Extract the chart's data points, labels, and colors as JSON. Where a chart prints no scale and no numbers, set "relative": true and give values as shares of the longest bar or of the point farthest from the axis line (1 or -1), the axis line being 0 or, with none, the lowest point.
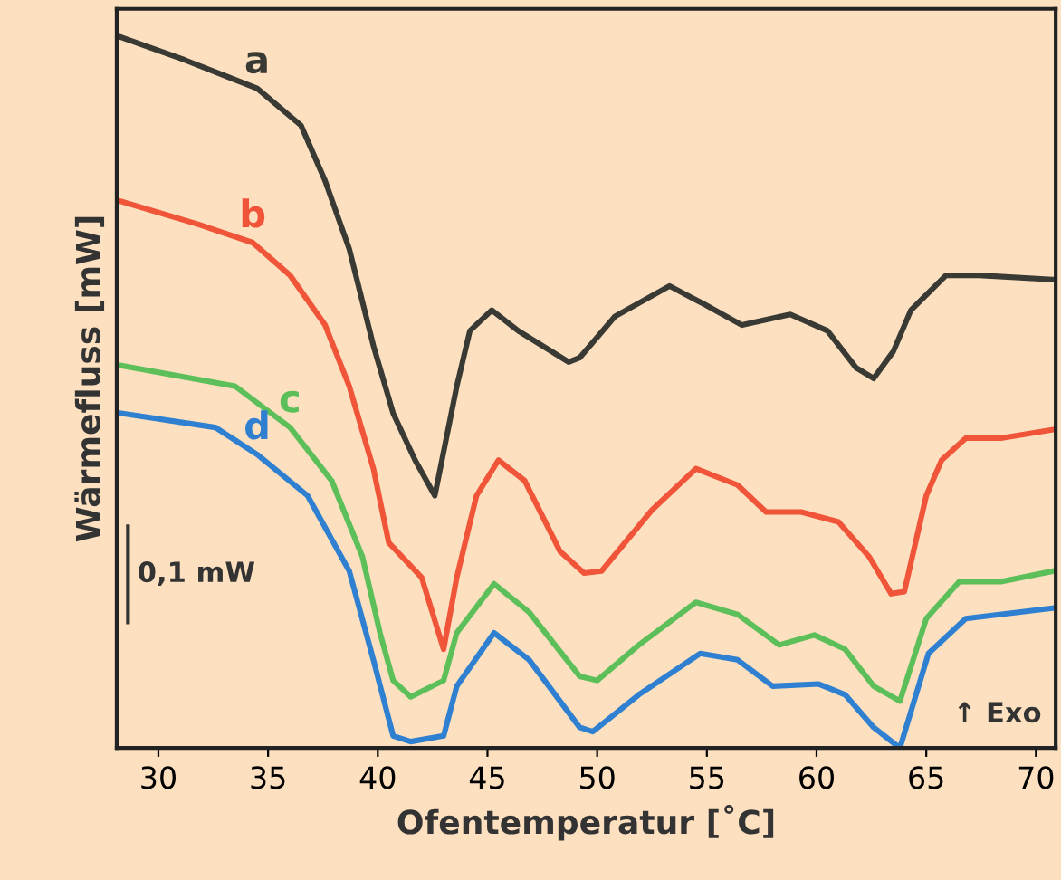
{
  "chart_data": {
    "type": "line",
    "xlabel": "Ofentemperatur [˚C]",
    "ylabel": "Wärmefluss [mW]",
    "relative": true,
    "xlim": [
      28.1,
      70.9
    ],
    "xticks": [
      30,
      35,
      40,
      45,
      50,
      55,
      60,
      65,
      70
    ],
    "tick_labels": "x",
    "grid": false,
    "legend": false,
    "marker": "none",
    "line_style": "solid",
    "annotations": [
      "0,1 mW",
      "↑ Exo"
    ],
    "series": [
      {
        "name": "a",
        "color": "#3a3a35",
        "x": [
          28.3,
          31.2,
          34.5,
          36.5,
          37.6,
          38.7,
          39.8,
          40.7,
          41.7,
          42.6,
          43.6,
          44.2,
          45.2,
          46.4,
          48.7,
          49.2,
          50.8,
          53.3,
          54.9,
          56.6,
          58.8,
          60.5,
          61.8,
          62.6,
          63.5,
          64.3,
          65.9,
          67.4,
          70.8
        ],
        "values": [
          1.0,
          0.968,
          0.928,
          0.876,
          0.798,
          0.702,
          0.566,
          0.471,
          0.405,
          0.355,
          0.509,
          0.587,
          0.616,
          0.587,
          0.543,
          0.549,
          0.607,
          0.65,
          0.624,
          0.595,
          0.61,
          0.587,
          0.535,
          0.52,
          0.558,
          0.616,
          0.665,
          0.665,
          0.659
        ]
      },
      {
        "name": "b",
        "color": "#f0553a",
        "x": [
          28.3,
          31.8,
          34.3,
          36.0,
          37.6,
          38.7,
          39.8,
          40.5,
          42.0,
          43.0,
          43.6,
          44.5,
          45.5,
          46.7,
          48.3,
          49.4,
          50.2,
          52.5,
          54.5,
          56.4,
          57.7,
          59.3,
          61.0,
          62.4,
          63.4,
          64.0,
          65.0,
          65.7,
          66.8,
          68.4,
          70.8
        ],
        "values": [
          0.769,
          0.737,
          0.711,
          0.665,
          0.595,
          0.509,
          0.393,
          0.289,
          0.24,
          0.139,
          0.24,
          0.355,
          0.405,
          0.376,
          0.277,
          0.246,
          0.249,
          0.335,
          0.393,
          0.37,
          0.332,
          0.332,
          0.318,
          0.269,
          0.217,
          0.22,
          0.355,
          0.405,
          0.436,
          0.436,
          0.448
        ]
      },
      {
        "name": "c",
        "color": "#5cbf5a",
        "x": [
          28.3,
          33.5,
          36.0,
          37.9,
          39.3,
          40.1,
          40.7,
          41.5,
          43.0,
          43.6,
          45.3,
          46.9,
          49.2,
          50.0,
          51.9,
          54.5,
          56.4,
          58.3,
          59.9,
          61.3,
          62.6,
          63.8,
          65.0,
          66.5,
          68.4,
          70.8
        ],
        "values": [
          0.538,
          0.509,
          0.451,
          0.376,
          0.269,
          0.162,
          0.095,
          0.072,
          0.095,
          0.162,
          0.231,
          0.191,
          0.101,
          0.095,
          0.145,
          0.205,
          0.188,
          0.145,
          0.159,
          0.139,
          0.087,
          0.066,
          0.182,
          0.234,
          0.234,
          0.249
        ]
      },
      {
        "name": "d",
        "color": "#2f80d0",
        "x": [
          28.3,
          32.6,
          34.5,
          36.8,
          38.7,
          39.8,
          40.7,
          41.5,
          43.0,
          43.6,
          45.3,
          46.9,
          49.2,
          49.8,
          51.9,
          54.7,
          56.4,
          58.0,
          60.1,
          61.3,
          62.6,
          63.8,
          65.1,
          66.8,
          70.8
        ],
        "values": [
          0.471,
          0.451,
          0.413,
          0.355,
          0.249,
          0.124,
          0.017,
          0.009,
          0.017,
          0.087,
          0.162,
          0.124,
          0.029,
          0.023,
          0.075,
          0.133,
          0.124,
          0.087,
          0.09,
          0.075,
          0.029,
          0.0,
          0.133,
          0.182,
          0.197
        ]
      }
    ]
  }
}
